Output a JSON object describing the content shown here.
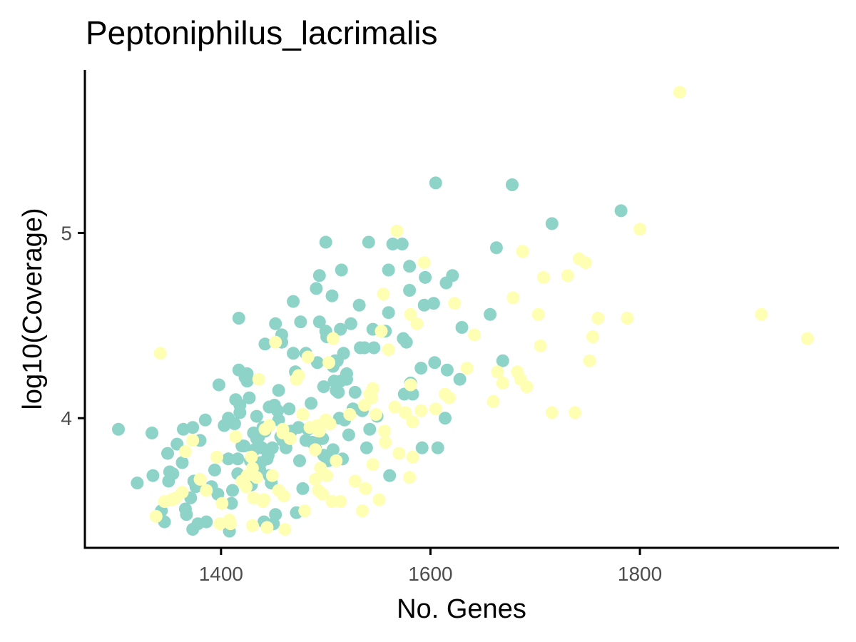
{
  "chart_data": {
    "type": "scatter",
    "title": "Peptoniphilus_lacrimalis",
    "xlabel": "No. Genes",
    "ylabel": "log10(Coverage)",
    "xlim": [
      1270,
      1990
    ],
    "ylim": [
      3.3,
      5.88
    ],
    "x_ticks": [
      1400,
      1600,
      1800
    ],
    "x_tick_labels": [
      "1400",
      "1600",
      "1800"
    ],
    "y_ticks": [
      4,
      5
    ],
    "y_tick_labels": [
      "4",
      "5"
    ],
    "grid": false,
    "legend": "none",
    "colors": {
      "teal": "#8dd3c7",
      "yellow": "#ffffb3",
      "axis": "#000000",
      "tick_text": "#4d4d4d"
    },
    "series": [
      {
        "color": "#8dd3c7",
        "points": [
          [
            1302,
            3.94
          ],
          [
            1320,
            3.65
          ],
          [
            1334,
            3.92
          ],
          [
            1335,
            3.69
          ],
          [
            1343,
            3.5
          ],
          [
            1346,
            3.44
          ],
          [
            1349,
            3.81
          ],
          [
            1350,
            3.66
          ],
          [
            1351,
            3.71
          ],
          [
            1354,
            3.7
          ],
          [
            1358,
            3.86
          ],
          [
            1363,
            3.76
          ],
          [
            1364,
            3.94
          ],
          [
            1366,
            3.51
          ],
          [
            1367,
            3.48
          ],
          [
            1371,
            3.57
          ],
          [
            1373,
            3.95
          ],
          [
            1373,
            3.4
          ],
          [
            1374,
            3.66
          ],
          [
            1376,
            3.63
          ],
          [
            1378,
            3.43
          ],
          [
            1380,
            3.88
          ],
          [
            1385,
            3.99
          ],
          [
            1386,
            3.44
          ],
          [
            1391,
            3.63
          ],
          [
            1394,
            3.72
          ],
          [
            1397,
            3.59
          ],
          [
            1398,
            4.18
          ],
          [
            1403,
            3.96
          ],
          [
            1407,
            4.0
          ],
          [
            1407,
            3.78
          ],
          [
            1408,
            3.39
          ],
          [
            1410,
            3.54
          ],
          [
            1411,
            3.61
          ],
          [
            1413,
            3.97
          ],
          [
            1414,
            4.1
          ],
          [
            1416,
            3.78
          ],
          [
            1416,
            3.7
          ],
          [
            1417,
            4.26
          ],
          [
            1417,
            4.54
          ],
          [
            1418,
            4.07
          ],
          [
            1418,
            4.03
          ],
          [
            1420,
            3.85
          ],
          [
            1422,
            3.85
          ],
          [
            1423,
            4.22
          ],
          [
            1425,
            4.2
          ],
          [
            1425,
            4.24
          ],
          [
            1427,
            4.11
          ],
          [
            1428,
            3.77
          ],
          [
            1429,
            3.64
          ],
          [
            1431,
            3.92
          ],
          [
            1432,
            3.83
          ],
          [
            1434,
            3.89
          ],
          [
            1434,
            4.01
          ],
          [
            1436,
            3.9
          ],
          [
            1437,
            3.72
          ],
          [
            1438,
            3.76
          ],
          [
            1439,
            3.84
          ],
          [
            1440,
            3.95
          ],
          [
            1441,
            3.44
          ],
          [
            1442,
            4.4
          ],
          [
            1442,
            3.93
          ],
          [
            1444,
            3.78
          ],
          [
            1445,
            3.8
          ],
          [
            1446,
            3.69
          ],
          [
            1446,
            4.06
          ],
          [
            1448,
            3.65
          ],
          [
            1449,
            3.84
          ],
          [
            1450,
            3.43
          ],
          [
            1451,
            4.07
          ],
          [
            1452,
            4.51
          ],
          [
            1452,
            3.48
          ],
          [
            1454,
            4.04
          ],
          [
            1455,
            4.15
          ],
          [
            1455,
            3.99
          ],
          [
            1457,
            3.9
          ],
          [
            1458,
            4.45
          ],
          [
            1458,
            4.41
          ],
          [
            1459,
            3.88
          ],
          [
            1462,
            3.84
          ],
          [
            1462,
            3.93
          ],
          [
            1465,
            4.05
          ],
          [
            1467,
            3.93
          ],
          [
            1469,
            4.35
          ],
          [
            1469,
            4.63
          ],
          [
            1471,
            4.25
          ],
          [
            1472,
            3.49
          ],
          [
            1474,
            3.95
          ],
          [
            1475,
            3.77
          ],
          [
            1476,
            4.52
          ],
          [
            1478,
            3.62
          ],
          [
            1481,
            3.88
          ],
          [
            1481,
            4.35
          ],
          [
            1483,
            3.94
          ],
          [
            1486,
            4.08
          ],
          [
            1487,
            3.87
          ],
          [
            1490,
            3.84
          ],
          [
            1491,
            4.7
          ],
          [
            1492,
            4.3
          ],
          [
            1494,
            4.52
          ],
          [
            1494,
            4.77
          ],
          [
            1497,
            3.89
          ],
          [
            1498,
            4.17
          ],
          [
            1498,
            3.8
          ],
          [
            1500,
            4.95
          ],
          [
            1500,
            4.47
          ],
          [
            1501,
            4.44
          ],
          [
            1502,
            3.77
          ],
          [
            1506,
            3.78
          ],
          [
            1506,
            4.66
          ],
          [
            1507,
            3.83
          ],
          [
            1507,
            4.28
          ],
          [
            1508,
            4.2
          ],
          [
            1509,
            4.31
          ],
          [
            1510,
            4.15
          ],
          [
            1511,
            4.31
          ],
          [
            1512,
            4.14
          ],
          [
            1513,
            4.0
          ],
          [
            1514,
            4.2
          ],
          [
            1514,
            4.48
          ],
          [
            1515,
            4.8
          ],
          [
            1516,
            3.78
          ],
          [
            1517,
            4.35
          ],
          [
            1518,
            3.99
          ],
          [
            1520,
            4.21
          ],
          [
            1520,
            4.24
          ],
          [
            1522,
            3.91
          ],
          [
            1524,
            4.51
          ],
          [
            1526,
            4.05
          ],
          [
            1528,
            4.14
          ],
          [
            1532,
            4.61
          ],
          [
            1533,
            4.38
          ],
          [
            1535,
            4.04
          ],
          [
            1537,
            4.38
          ],
          [
            1539,
            3.84
          ],
          [
            1541,
            4.95
          ],
          [
            1542,
            3.94
          ],
          [
            1545,
            4.48
          ],
          [
            1546,
            4.38
          ],
          [
            1549,
            4.01
          ],
          [
            1557,
            4.47
          ],
          [
            1560,
            4.57
          ],
          [
            1560,
            4.8
          ],
          [
            1561,
            3.69
          ],
          [
            1564,
            4.94
          ],
          [
            1573,
            4.94
          ],
          [
            1574,
            4.43
          ],
          [
            1575,
            4.13
          ],
          [
            1577,
            4.41
          ],
          [
            1580,
            4.69
          ],
          [
            1580,
            4.82
          ],
          [
            1581,
            4.19
          ],
          [
            1583,
            4.13
          ],
          [
            1591,
            4.27
          ],
          [
            1592,
            3.84
          ],
          [
            1594,
            4.61
          ],
          [
            1595,
            4.76
          ],
          [
            1603,
            4.62
          ],
          [
            1604,
            4.3
          ],
          [
            1605,
            5.27
          ],
          [
            1607,
            3.84
          ],
          [
            1614,
            4.0
          ],
          [
            1615,
            4.73
          ],
          [
            1616,
            4.26
          ],
          [
            1621,
            4.77
          ],
          [
            1628,
            4.21
          ],
          [
            1630,
            4.49
          ],
          [
            1657,
            4.56
          ],
          [
            1663,
            4.92
          ],
          [
            1669,
            4.31
          ],
          [
            1678,
            5.26
          ],
          [
            1716,
            5.05
          ],
          [
            1782,
            5.12
          ]
        ]
      },
      {
        "color": "#ffffb3",
        "points": [
          [
            1338,
            3.47
          ],
          [
            1342,
            4.35
          ],
          [
            1346,
            3.55
          ],
          [
            1353,
            3.56
          ],
          [
            1357,
            3.57
          ],
          [
            1363,
            3.6
          ],
          [
            1366,
            3.82
          ],
          [
            1373,
            3.88
          ],
          [
            1380,
            3.67
          ],
          [
            1386,
            3.61
          ],
          [
            1396,
            3.79
          ],
          [
            1399,
            3.43
          ],
          [
            1401,
            3.54
          ],
          [
            1408,
            3.45
          ],
          [
            1409,
            3.43
          ],
          [
            1414,
            3.9
          ],
          [
            1420,
            3.66
          ],
          [
            1424,
            3.63
          ],
          [
            1425,
            3.69
          ],
          [
            1429,
            3.79
          ],
          [
            1430,
            3.73
          ],
          [
            1430,
            3.42
          ],
          [
            1431,
            3.57
          ],
          [
            1434,
            3.68
          ],
          [
            1436,
            4.21
          ],
          [
            1440,
            3.55
          ],
          [
            1441,
            3.56
          ],
          [
            1442,
            3.94
          ],
          [
            1444,
            3.41
          ],
          [
            1446,
            3.96
          ],
          [
            1449,
            3.69
          ],
          [
            1452,
            4.41
          ],
          [
            1455,
            3.61
          ],
          [
            1459,
            3.94
          ],
          [
            1459,
            3.92
          ],
          [
            1460,
            3.58
          ],
          [
            1461,
            3.4
          ],
          [
            1466,
            3.89
          ],
          [
            1472,
            4.21
          ],
          [
            1474,
            4.23
          ],
          [
            1478,
            4.02
          ],
          [
            1480,
            3.5
          ],
          [
            1483,
            4.33
          ],
          [
            1485,
            3.95
          ],
          [
            1490,
            3.83
          ],
          [
            1490,
            3.67
          ],
          [
            1492,
            3.96
          ],
          [
            1493,
            3.61
          ],
          [
            1494,
            3.93
          ],
          [
            1495,
            3.73
          ],
          [
            1497,
            3.59
          ],
          [
            1500,
            3.99
          ],
          [
            1501,
            3.69
          ],
          [
            1503,
            4.3
          ],
          [
            1504,
            3.97
          ],
          [
            1506,
            3.55
          ],
          [
            1507,
            4.43
          ],
          [
            1510,
            3.77
          ],
          [
            1514,
            3.55
          ],
          [
            1523,
            4.02
          ],
          [
            1528,
            3.66
          ],
          [
            1535,
            3.5
          ],
          [
            1537,
            4.07
          ],
          [
            1538,
            3.62
          ],
          [
            1542,
            4.13
          ],
          [
            1544,
            4.11
          ],
          [
            1545,
            4.16
          ],
          [
            1545,
            3.75
          ],
          [
            1548,
            4.02
          ],
          [
            1551,
            3.56
          ],
          [
            1553,
            4.47
          ],
          [
            1555,
            4.67
          ],
          [
            1556,
            3.93
          ],
          [
            1557,
            3.87
          ],
          [
            1560,
            4.37
          ],
          [
            1566,
            4.06
          ],
          [
            1568,
            5.01
          ],
          [
            1570,
            3.81
          ],
          [
            1576,
            4.03
          ],
          [
            1580,
            3.68
          ],
          [
            1581,
            4.56
          ],
          [
            1581,
            4.18
          ],
          [
            1583,
            3.79
          ],
          [
            1583,
            3.98
          ],
          [
            1587,
            4.51
          ],
          [
            1591,
            4.04
          ],
          [
            1594,
            4.84
          ],
          [
            1605,
            4.05
          ],
          [
            1614,
            4.13
          ],
          [
            1618,
            4.11
          ],
          [
            1623,
            4.62
          ],
          [
            1635,
            4.27
          ],
          [
            1642,
            4.45
          ],
          [
            1660,
            4.09
          ],
          [
            1664,
            4.25
          ],
          [
            1669,
            4.19
          ],
          [
            1679,
            4.65
          ],
          [
            1683,
            4.25
          ],
          [
            1686,
            4.21
          ],
          [
            1688,
            4.9
          ],
          [
            1692,
            4.17
          ],
          [
            1703,
            4.56
          ],
          [
            1705,
            4.39
          ],
          [
            1708,
            4.76
          ],
          [
            1716,
            4.03
          ],
          [
            1731,
            4.77
          ],
          [
            1738,
            4.03
          ],
          [
            1742,
            4.86
          ],
          [
            1748,
            4.84
          ],
          [
            1752,
            4.31
          ],
          [
            1755,
            4.44
          ],
          [
            1760,
            4.54
          ],
          [
            1788,
            4.54
          ],
          [
            1800,
            5.02
          ],
          [
            1838,
            5.76
          ],
          [
            1916,
            4.56
          ],
          [
            1960,
            4.43
          ]
        ]
      }
    ]
  }
}
